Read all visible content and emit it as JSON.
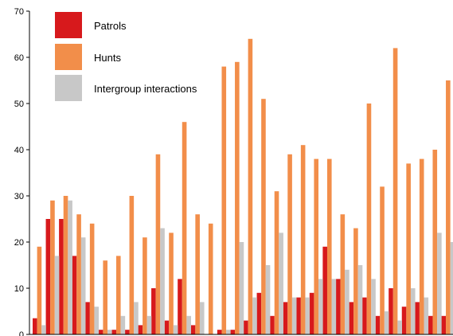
{
  "chart_data": {
    "type": "bar",
    "title": "",
    "xlabel": "",
    "ylabel": "",
    "ylim": [
      0,
      70
    ],
    "yticks": [
      0,
      10,
      20,
      30,
      40,
      50,
      60,
      70
    ],
    "grid": false,
    "legend_position": "top-left",
    "colors": {
      "Patrols": "#d7191c",
      "Hunts": "#f28e4a",
      "Intergroup interactions": "#c8c8c8"
    },
    "series": [
      {
        "name": "Patrols",
        "values": [
          3.5,
          25,
          25,
          17,
          7,
          1,
          1,
          1,
          2,
          10,
          3,
          12,
          2,
          0,
          1,
          1,
          3,
          9,
          4,
          7,
          8,
          9,
          19,
          12,
          7,
          8,
          4,
          10,
          6,
          7,
          4,
          4
        ]
      },
      {
        "name": "Hunts",
        "values": [
          19,
          29,
          30,
          26,
          24,
          16,
          17,
          30,
          21,
          39,
          22,
          46,
          26,
          24,
          58,
          59,
          64,
          51,
          31,
          39,
          41,
          38,
          38,
          26,
          23,
          50,
          32,
          62,
          37,
          38,
          40,
          55
        ]
      },
      {
        "name": "Intergroup interactions",
        "values": [
          2,
          17,
          29,
          21,
          6,
          1,
          4,
          7,
          4,
          23,
          2,
          4,
          7,
          0,
          1,
          20,
          8,
          15,
          22,
          8,
          8,
          12,
          12,
          14,
          15,
          12,
          5,
          3,
          10,
          8,
          22,
          20
        ]
      }
    ]
  }
}
